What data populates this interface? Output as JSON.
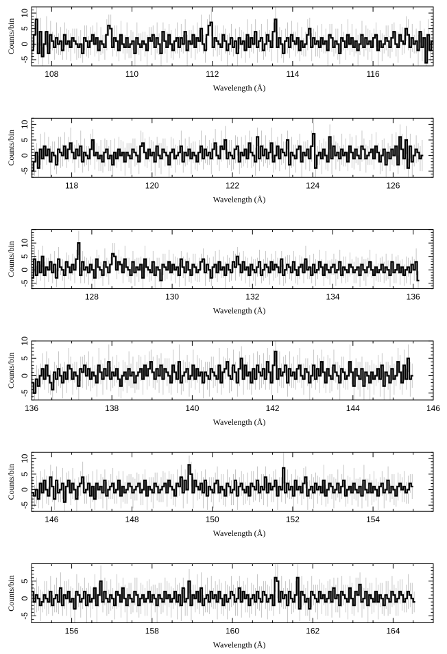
{
  "figure": {
    "ylabel": "Counts/bin",
    "xlabel": "Wavelength (Å)"
  },
  "chart_data": [
    {
      "type": "line",
      "style": "histogram-steps-with-error-bars",
      "xlabel": "Wavelength (Å)",
      "ylabel": "Counts/bin",
      "xlim": [
        107.5,
        117.5
      ],
      "ylim": [
        -7,
        12
      ],
      "xticks": [
        108,
        110,
        112,
        114,
        116
      ],
      "yticks": [
        -5,
        0,
        5,
        10
      ],
      "bin_width": 0.05,
      "values": [
        -2,
        3,
        8,
        -3,
        4,
        -4,
        0,
        4,
        -3,
        3,
        1,
        -1,
        2,
        0,
        1,
        -2,
        3,
        0,
        1,
        -1,
        2,
        1,
        0,
        -1,
        0,
        -3,
        2,
        1,
        -1,
        1,
        3,
        0,
        2,
        -2,
        1,
        0,
        -1,
        3,
        6,
        5,
        -1,
        2,
        1,
        -2,
        3,
        0,
        -1,
        2,
        -1,
        0,
        1,
        -3,
        2,
        0,
        -1,
        1,
        0,
        -2,
        2,
        1,
        3,
        -1,
        2,
        0,
        -3,
        4,
        1,
        -1,
        3,
        0,
        -2,
        1,
        2,
        -1,
        2,
        0,
        4,
        -2,
        1,
        0,
        3,
        -1,
        2,
        1,
        5,
        0,
        -2,
        3,
        6,
        7,
        -1,
        2,
        1,
        0,
        -1,
        3,
        1,
        -2,
        0,
        2,
        -1,
        1,
        -3,
        2,
        0,
        1,
        -2,
        3,
        -1,
        2,
        0,
        4,
        -1,
        1,
        2,
        -2,
        0,
        3,
        1,
        -1,
        4,
        8,
        -1,
        2,
        0,
        -3,
        1,
        2,
        -1,
        3,
        1,
        0,
        2,
        -2,
        1,
        -1,
        0,
        3,
        5,
        -1,
        2,
        0,
        1,
        -1,
        2,
        0,
        1,
        -2,
        3,
        2,
        -1,
        1,
        0,
        -3,
        2,
        1,
        -1,
        3,
        0,
        2,
        -1,
        1,
        -2,
        0,
        3,
        -1,
        2,
        0,
        1,
        -1,
        2,
        3,
        -2,
        1,
        -1,
        0,
        2,
        1,
        -1,
        2,
        4,
        0,
        -1,
        3,
        1,
        0,
        5,
        3,
        -1,
        2,
        0,
        1,
        -2,
        4,
        -1,
        2,
        -6,
        3,
        -2,
        1,
        0,
        2,
        1
      ]
    },
    {
      "type": "line",
      "style": "histogram-steps-with-error-bars",
      "xlabel": "Wavelength (Å)",
      "ylabel": "Counts/bin",
      "xlim": [
        117,
        127
      ],
      "ylim": [
        -7,
        12
      ],
      "xticks": [
        118,
        120,
        122,
        124,
        126
      ],
      "yticks": [
        -5,
        0,
        5,
        10
      ],
      "bin_width": 0.05,
      "values": [
        -5,
        -2,
        1,
        -4,
        2,
        -1,
        3,
        0,
        2,
        -2,
        1,
        0,
        -3,
        2,
        1,
        0,
        3,
        -1,
        2,
        4,
        1,
        -1,
        2,
        0,
        3,
        -2,
        1,
        0,
        -1,
        2,
        5,
        0,
        1,
        -1,
        0,
        -2,
        1,
        2,
        -1,
        0,
        -3,
        1,
        -1,
        2,
        0,
        1,
        -2,
        1,
        0,
        -1,
        2,
        1,
        0,
        -2,
        3,
        4,
        1,
        -1,
        2,
        0,
        1,
        -2,
        3,
        0,
        -1,
        2,
        1,
        0,
        -3,
        1,
        2,
        -1,
        0,
        1,
        3,
        -2,
        1,
        0,
        2,
        -1,
        1,
        0,
        -2,
        1,
        3,
        -1,
        2,
        0,
        1,
        -1,
        2,
        4,
        0,
        -1,
        3,
        2,
        5,
        -1,
        1,
        0,
        -1,
        2,
        3,
        -2,
        1,
        0,
        2,
        -1,
        4,
        1,
        0,
        -2,
        6,
        -1,
        3,
        0,
        2,
        -1,
        1,
        4,
        -2,
        0,
        3,
        -1,
        2,
        1,
        0,
        5,
        -3,
        1,
        0,
        -1,
        2,
        3,
        -2,
        1,
        0,
        2,
        -1,
        3,
        7,
        -4,
        0,
        1,
        -1,
        2,
        0,
        -2,
        6,
        -1,
        3,
        0,
        1,
        -1,
        2,
        0,
        1,
        -2,
        3,
        1,
        -1,
        2,
        0,
        -1,
        3,
        2,
        -1,
        0,
        1,
        2,
        -1,
        3,
        1,
        -2,
        0,
        2,
        -3,
        1,
        -1,
        2,
        0,
        3,
        -3,
        6,
        2,
        -1,
        5,
        -4,
        3,
        -2,
        0,
        2,
        1,
        -1,
        0
      ]
    },
    {
      "type": "line",
      "style": "histogram-steps-with-error-bars",
      "xlabel": "Wavelength (Å)",
      "ylabel": "Counts/bin",
      "xlim": [
        126.5,
        136.5
      ],
      "ylim": [
        -7,
        15
      ],
      "xticks": [
        128,
        130,
        132,
        134,
        136
      ],
      "yticks": [
        -5,
        0,
        5,
        10
      ],
      "bin_width": 0.05,
      "values": [
        -3,
        4,
        -2,
        3,
        -1,
        5,
        -2,
        1,
        0,
        3,
        -1,
        2,
        -3,
        4,
        1,
        0,
        -2,
        3,
        1,
        -1,
        2,
        0,
        4,
        10,
        -2,
        3,
        0,
        1,
        -1,
        2,
        0,
        -3,
        4,
        1,
        0,
        -2,
        3,
        1,
        -1,
        2,
        6,
        5,
        0,
        3,
        2,
        -1,
        4,
        1,
        0,
        -2,
        3,
        -1,
        1,
        0,
        2,
        -3,
        4,
        1,
        0,
        -1,
        3,
        -2,
        1,
        0,
        -4,
        2,
        1,
        0,
        3,
        -1,
        2,
        0,
        1,
        -2,
        4,
        1,
        -1,
        3,
        0,
        -2,
        2,
        1,
        -1,
        0,
        3,
        4,
        -1,
        2,
        0,
        -3,
        1,
        2,
        -1,
        3,
        0,
        1,
        -2,
        2,
        0,
        -1,
        3,
        1,
        5,
        2,
        -1,
        3,
        0,
        1,
        -2,
        2,
        0,
        -1,
        1,
        3,
        -2,
        0,
        2,
        1,
        -1,
        3,
        0,
        2,
        1,
        -1,
        4,
        -2,
        0,
        2,
        1,
        -1,
        3,
        0,
        -2,
        1,
        2,
        -1,
        4,
        0,
        1,
        -2,
        2,
        -1,
        0,
        3,
        1,
        -2,
        2,
        0,
        -1,
        1,
        2,
        -1,
        0,
        3,
        -2,
        1,
        0,
        -1,
        2,
        1,
        -1,
        0,
        1,
        -2,
        2,
        0,
        -1,
        1,
        3,
        0,
        -2,
        1,
        -1,
        0,
        2,
        -1,
        1,
        0,
        -2,
        3,
        -1,
        0,
        2,
        -1,
        1,
        -2,
        0,
        1,
        -1,
        2,
        0,
        3,
        -4
      ]
    },
    {
      "type": "line",
      "style": "histogram-steps-with-error-bars",
      "xlabel": "Wavelength (Å)",
      "ylabel": "Counts/bin",
      "xlim": [
        136,
        146
      ],
      "ylim": [
        -7,
        10
      ],
      "xticks": [
        136,
        138,
        140,
        142,
        144,
        146
      ],
      "yticks": [
        -5,
        0,
        5,
        10
      ],
      "bin_width": 0.05,
      "values": [
        -2,
        -5,
        -1,
        -3,
        0,
        2,
        -1,
        3,
        0,
        -2,
        -4,
        1,
        -1,
        2,
        0,
        -2,
        1,
        -1,
        3,
        2,
        -1,
        1,
        0,
        -3,
        2,
        1,
        3,
        0,
        2,
        -1,
        1,
        0,
        -2,
        3,
        1,
        -1,
        2,
        0,
        4,
        -1,
        1,
        0,
        2,
        -1,
        -3,
        0,
        1,
        -1,
        2,
        0,
        1,
        -2,
        0,
        1,
        2,
        -1,
        3,
        0,
        2,
        4,
        1,
        -1,
        2,
        0,
        3,
        -1,
        2,
        1,
        0,
        -2,
        3,
        1,
        -1,
        4,
        -2,
        0,
        1,
        2,
        -1,
        0,
        3,
        -1,
        2,
        0,
        1,
        -2,
        1,
        0,
        -1,
        2,
        1,
        0,
        -1,
        3,
        -2,
        1,
        2,
        4,
        0,
        -1,
        3,
        1,
        -2,
        2,
        5,
        -1,
        3,
        0,
        1,
        -2,
        2,
        -1,
        3,
        1,
        0,
        2,
        -1,
        4,
        1,
        -2,
        3,
        7,
        -1,
        2,
        0,
        1,
        3,
        -2,
        2,
        0,
        1,
        -1,
        2,
        3,
        0,
        -1,
        2,
        1,
        -2,
        0,
        3,
        -1,
        2,
        0,
        4,
        1,
        -2,
        2,
        0,
        -1,
        3,
        1,
        0,
        -2,
        2,
        1,
        -1,
        0,
        4,
        1,
        -3,
        2,
        0,
        -1,
        2,
        -3,
        1,
        0,
        -2,
        1,
        -1,
        0,
        2,
        -1,
        3,
        -3,
        1,
        0,
        -2,
        2,
        -1,
        0,
        4,
        1,
        -2,
        3,
        -1,
        5,
        -1,
        0
      ]
    },
    {
      "type": "line",
      "style": "histogram-steps-with-error-bars",
      "xlabel": "Wavelength (Å)",
      "ylabel": "Counts/bin",
      "xlim": [
        145.5,
        155.5
      ],
      "ylim": [
        -7,
        12
      ],
      "xticks": [
        146,
        148,
        150,
        152,
        154
      ],
      "yticks": [
        -5,
        0,
        5,
        10
      ],
      "bin_width": 0.05,
      "values": [
        -1,
        -2,
        0,
        -3,
        2,
        -1,
        3,
        0,
        -2,
        4,
        1,
        -3,
        3,
        -1,
        0,
        2,
        -4,
        1,
        3,
        -1,
        2,
        0,
        -3,
        1,
        2,
        4,
        -1,
        0,
        2,
        -2,
        1,
        -3,
        2,
        0,
        1,
        -1,
        3,
        -2,
        0,
        1,
        2,
        -1,
        0,
        3,
        -2,
        1,
        -1,
        0,
        2,
        1,
        -1,
        0,
        1,
        2,
        -1,
        0,
        3,
        -2,
        1,
        0,
        -1,
        2,
        1,
        -1,
        0,
        1,
        2,
        -1,
        3,
        1,
        0,
        -2,
        2,
        1,
        4,
        -1,
        3,
        0,
        8,
        5,
        -1,
        3,
        1,
        0,
        2,
        -1,
        3,
        -2,
        1,
        0,
        -1,
        2,
        3,
        -1,
        1,
        0,
        -2,
        2,
        1,
        -1,
        0,
        3,
        -2,
        1,
        2,
        0,
        -1,
        1,
        -2,
        2,
        1,
        0,
        3,
        -1,
        1,
        0,
        4,
        -1,
        2,
        0,
        1,
        3,
        -2,
        1,
        0,
        7,
        -1,
        2,
        0,
        1,
        -2,
        3,
        0,
        1,
        -1,
        2,
        4,
        -2,
        0,
        1,
        -1,
        2,
        0,
        1,
        -1,
        3,
        -2,
        0,
        2,
        1,
        -1,
        0,
        2,
        -1,
        1,
        3,
        -2,
        0,
        1,
        -1,
        2,
        0,
        -1,
        1,
        -2,
        3,
        0,
        -1,
        2,
        -1,
        1,
        0,
        -2,
        1,
        2,
        -1,
        0,
        3,
        -1,
        1,
        0,
        -2,
        1,
        2,
        0,
        1,
        -1,
        0,
        2,
        1
      ]
    },
    {
      "type": "line",
      "style": "histogram-steps-with-error-bars",
      "xlabel": "Wavelength (Å)",
      "ylabel": "Counts/bin",
      "xlim": [
        155,
        165
      ],
      "ylim": [
        -7,
        10
      ],
      "xticks": [
        156,
        158,
        160,
        162,
        164
      ],
      "yticks": [
        -5,
        0,
        5
      ],
      "bin_width": 0.05,
      "values": [
        2,
        -1,
        1,
        0,
        -2,
        -1,
        1,
        0,
        -1,
        2,
        -2,
        0,
        1,
        -1,
        3,
        -2,
        1,
        0,
        2,
        -1,
        0,
        -3,
        2,
        1,
        -1,
        0,
        2,
        -2,
        1,
        -1,
        0,
        3,
        -2,
        1,
        5,
        -1,
        2,
        0,
        -1,
        1,
        0,
        -2,
        2,
        1,
        -1,
        3,
        0,
        -2,
        1,
        0,
        -1,
        2,
        1,
        -2,
        0,
        1,
        -1,
        0,
        2,
        -1,
        1,
        0,
        -2,
        1,
        0,
        -1,
        2,
        0,
        1,
        -1,
        0,
        2,
        -1,
        1,
        -2,
        3,
        -1,
        0,
        5,
        -2,
        1,
        0,
        2,
        -1,
        3,
        -2,
        0,
        1,
        -1,
        2,
        0,
        1,
        -1,
        2,
        0,
        -2,
        1,
        -1,
        0,
        2,
        1,
        -1,
        0,
        3,
        -1,
        2,
        0,
        1,
        -2,
        0,
        1,
        -1,
        2,
        0,
        -1,
        2,
        1,
        -1,
        0,
        1,
        -2,
        6,
        5,
        -1,
        2,
        0,
        1,
        -2,
        2,
        0,
        -1,
        1,
        6,
        -3,
        2,
        1,
        -1,
        0,
        -3,
        2,
        1,
        0,
        -1,
        2,
        0,
        1,
        -1,
        0,
        2,
        -1,
        3,
        0,
        1,
        -2,
        2,
        1,
        0,
        -1,
        3,
        0,
        -2,
        2,
        1,
        4,
        -1,
        0,
        2,
        -2,
        1,
        0,
        -1,
        2,
        -1,
        1,
        0,
        -2,
        1,
        0,
        -1,
        2,
        1,
        -1,
        0,
        2,
        1,
        -1,
        0,
        2,
        1,
        0,
        -1
      ]
    }
  ]
}
